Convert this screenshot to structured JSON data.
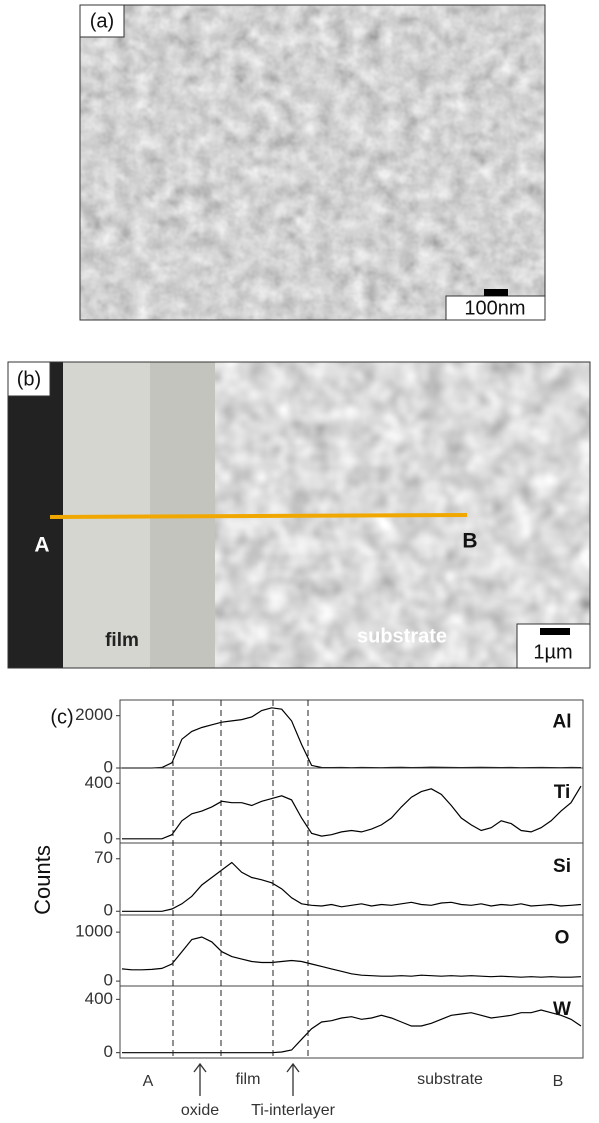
{
  "figure": {
    "panel_a": {
      "label": "(a)",
      "scale_bar": "100nm"
    },
    "panel_b": {
      "label": "(b)",
      "start": "A",
      "end": "B",
      "film": "film",
      "substrate": "substrate",
      "scale_bar": "1µm"
    },
    "panel_c": {
      "label": "(c)",
      "y_axis_label": "Counts",
      "x_annotations": [
        "A",
        "oxide",
        "film",
        "Ti-interlayer",
        "substrate",
        "B"
      ]
    }
  },
  "chart_data": [
    {
      "type": "line",
      "label": "Al",
      "color": "#000000",
      "ylim": [
        0,
        2600
      ],
      "yticks": [
        0,
        2000
      ],
      "values": [
        0,
        0,
        0,
        0,
        20,
        200,
        1100,
        1400,
        1550,
        1650,
        1750,
        1800,
        1850,
        1950,
        2200,
        2300,
        2250,
        1800,
        900,
        100,
        20,
        15,
        20,
        10,
        20,
        15,
        10,
        20,
        25,
        15,
        20,
        30,
        25,
        20,
        15,
        20,
        25,
        20,
        15,
        20,
        10,
        15,
        20,
        15,
        10,
        20,
        15
      ]
    },
    {
      "type": "line",
      "label": "Ti",
      "color": "#000000",
      "ylim": [
        -30,
        510
      ],
      "yticks": [
        0,
        400
      ],
      "values": [
        0,
        0,
        0,
        0,
        0,
        30,
        130,
        180,
        200,
        230,
        270,
        260,
        260,
        240,
        270,
        290,
        310,
        280,
        150,
        40,
        20,
        30,
        50,
        60,
        50,
        70,
        100,
        150,
        230,
        300,
        340,
        360,
        320,
        240,
        150,
        100,
        60,
        80,
        130,
        110,
        60,
        50,
        80,
        130,
        200,
        260,
        380
      ]
    },
    {
      "type": "line",
      "label": "Si",
      "color": "#000000",
      "ylim": [
        -5,
        91
      ],
      "yticks": [
        0,
        70
      ],
      "values": [
        0,
        0,
        0,
        0,
        0,
        3,
        10,
        20,
        35,
        45,
        55,
        65,
        52,
        45,
        42,
        38,
        30,
        18,
        10,
        8,
        7,
        9,
        6,
        8,
        10,
        7,
        9,
        8,
        10,
        12,
        9,
        8,
        11,
        12,
        9,
        8,
        10,
        7,
        9,
        8,
        10,
        7,
        8,
        9,
        7,
        8,
        9
      ]
    },
    {
      "type": "line",
      "label": "O",
      "color": "#000000",
      "ylim": [
        -100,
        1350
      ],
      "yticks": [
        0,
        1000
      ],
      "values": [
        250,
        230,
        230,
        240,
        260,
        350,
        600,
        850,
        900,
        800,
        600,
        500,
        450,
        400,
        380,
        380,
        400,
        420,
        400,
        350,
        300,
        250,
        200,
        150,
        120,
        110,
        100,
        100,
        110,
        100,
        120,
        110,
        100,
        110,
        100,
        110,
        100,
        90,
        100,
        90,
        80,
        90,
        80,
        90,
        80,
        80,
        90
      ]
    },
    {
      "type": "line",
      "label": "W",
      "color": "#000000",
      "ylim": [
        -40,
        500
      ],
      "yticks": [
        0,
        400
      ],
      "values": [
        0,
        0,
        0,
        0,
        0,
        0,
        0,
        0,
        0,
        0,
        0,
        0,
        0,
        0,
        0,
        0,
        5,
        20,
        100,
        180,
        230,
        240,
        260,
        270,
        250,
        260,
        280,
        260,
        230,
        200,
        200,
        220,
        250,
        280,
        290,
        300,
        280,
        260,
        270,
        280,
        300,
        300,
        320,
        300,
        280,
        250,
        200
      ]
    }
  ]
}
